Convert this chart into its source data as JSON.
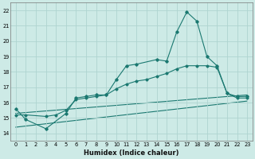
{
  "xlabel": "Humidex (Indice chaleur)",
  "xlim": [
    -0.5,
    23.5
  ],
  "ylim": [
    13.5,
    22.5
  ],
  "xticks": [
    0,
    1,
    2,
    3,
    4,
    5,
    6,
    7,
    8,
    9,
    10,
    11,
    12,
    13,
    14,
    15,
    16,
    17,
    18,
    19,
    20,
    21,
    22,
    23
  ],
  "yticks": [
    14,
    15,
    16,
    17,
    18,
    19,
    20,
    21,
    22
  ],
  "bg_color": "#cdeae6",
  "grid_color": "#afd4d0",
  "line_color": "#1a7870",
  "line1_x": [
    0,
    1,
    3,
    5,
    6,
    7,
    8,
    9,
    10,
    11,
    12,
    14,
    15,
    16,
    17,
    18,
    19,
    20,
    21,
    22,
    23
  ],
  "line1_y": [
    15.6,
    14.9,
    14.3,
    15.3,
    16.3,
    16.4,
    16.5,
    16.5,
    17.5,
    18.4,
    18.5,
    18.8,
    18.7,
    20.6,
    21.9,
    21.3,
    19.0,
    18.4,
    16.6,
    16.4,
    16.4
  ],
  "line2_x": [
    0,
    1,
    3,
    4,
    5,
    6,
    7,
    8,
    9,
    10,
    11,
    12,
    13,
    14,
    15,
    16,
    17,
    18,
    19,
    20,
    21,
    22,
    23
  ],
  "line2_y": [
    15.2,
    15.2,
    15.1,
    15.2,
    15.5,
    16.2,
    16.3,
    16.4,
    16.5,
    16.9,
    17.2,
    17.4,
    17.5,
    17.7,
    17.9,
    18.2,
    18.4,
    18.4,
    18.4,
    18.3,
    16.6,
    16.3,
    16.3
  ],
  "line3_x": [
    0,
    23
  ],
  "line3_y": [
    15.3,
    16.5
  ],
  "line4_x": [
    0,
    23
  ],
  "line4_y": [
    14.4,
    16.1
  ],
  "figsize": [
    3.2,
    2.0
  ],
  "dpi": 100,
  "tick_fontsize": 4.8,
  "label_fontsize": 6.0
}
